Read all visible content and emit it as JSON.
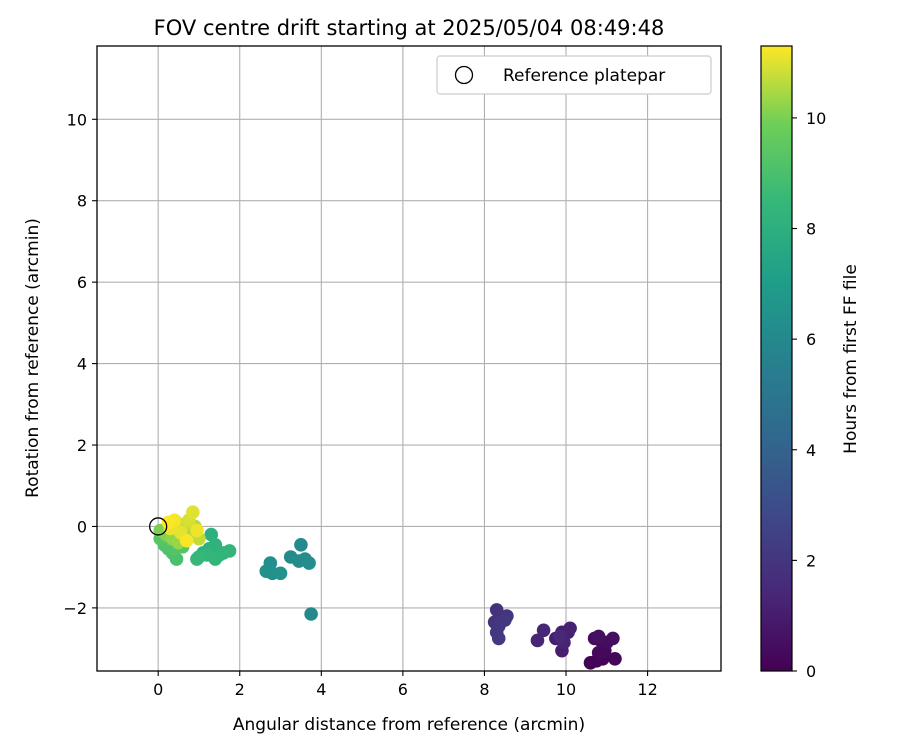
{
  "chart_data": {
    "type": "scatter",
    "title": "FOV centre drift starting at 2025/05/04 08:49:48",
    "xlabel": "Angular distance from reference (arcmin)",
    "ylabel": "Rotation from reference (arcmin)",
    "xlim": [
      -1.5,
      13.8
    ],
    "ylim": [
      -3.55,
      11.8
    ],
    "xticks": [
      0,
      2,
      4,
      6,
      8,
      10,
      12
    ],
    "yticks": [
      -2,
      0,
      2,
      4,
      6,
      8,
      10
    ],
    "grid": true,
    "legend": {
      "placement": "top-right",
      "entries": [
        "Reference platepar"
      ]
    },
    "reference_point": {
      "x": 0.0,
      "y": 0.0
    },
    "colorbar": {
      "label": "Hours from first FF file",
      "colormap": "viridis",
      "range": [
        0,
        11.3
      ],
      "ticks": [
        0,
        2,
        4,
        6,
        8,
        10
      ]
    },
    "points": [
      {
        "x": 10.6,
        "y": -3.35,
        "c": 0.05
      },
      {
        "x": 10.75,
        "y": -3.3,
        "c": 0.1
      },
      {
        "x": 10.9,
        "y": -3.25,
        "c": 0.15
      },
      {
        "x": 11.2,
        "y": -3.25,
        "c": 0.2
      },
      {
        "x": 10.8,
        "y": -3.1,
        "c": 0.25
      },
      {
        "x": 10.95,
        "y": -3.05,
        "c": 0.3
      },
      {
        "x": 10.7,
        "y": -2.75,
        "c": 0.35
      },
      {
        "x": 10.85,
        "y": -2.8,
        "c": 0.4
      },
      {
        "x": 11.0,
        "y": -2.85,
        "c": 0.45
      },
      {
        "x": 11.15,
        "y": -2.75,
        "c": 0.5
      },
      {
        "x": 10.8,
        "y": -2.7,
        "c": 0.55
      },
      {
        "x": 9.9,
        "y": -3.05,
        "c": 1.0
      },
      {
        "x": 9.75,
        "y": -2.75,
        "c": 1.05
      },
      {
        "x": 9.9,
        "y": -2.6,
        "c": 1.1
      },
      {
        "x": 10.05,
        "y": -2.6,
        "c": 1.15
      },
      {
        "x": 10.1,
        "y": -2.5,
        "c": 1.2
      },
      {
        "x": 9.95,
        "y": -2.85,
        "c": 1.25
      },
      {
        "x": 9.3,
        "y": -2.8,
        "c": 1.3
      },
      {
        "x": 9.45,
        "y": -2.55,
        "c": 1.35
      },
      {
        "x": 9.85,
        "y": -2.7,
        "c": 1.4
      },
      {
        "x": 8.3,
        "y": -2.05,
        "c": 1.8
      },
      {
        "x": 8.25,
        "y": -2.35,
        "c": 1.85
      },
      {
        "x": 8.35,
        "y": -2.45,
        "c": 1.9
      },
      {
        "x": 8.55,
        "y": -2.2,
        "c": 1.95
      },
      {
        "x": 8.4,
        "y": -2.35,
        "c": 2.0
      },
      {
        "x": 8.5,
        "y": -2.3,
        "c": 2.05
      },
      {
        "x": 8.3,
        "y": -2.6,
        "c": 2.1
      },
      {
        "x": 8.35,
        "y": -2.75,
        "c": 2.15
      },
      {
        "x": 3.75,
        "y": -2.15,
        "c": 6.0
      },
      {
        "x": 3.5,
        "y": -0.45,
        "c": 6.05
      },
      {
        "x": 3.25,
        "y": -0.75,
        "c": 6.1
      },
      {
        "x": 3.45,
        "y": -0.85,
        "c": 6.15
      },
      {
        "x": 3.6,
        "y": -0.8,
        "c": 6.2
      },
      {
        "x": 3.7,
        "y": -0.9,
        "c": 6.25
      },
      {
        "x": 2.75,
        "y": -0.9,
        "c": 6.3
      },
      {
        "x": 2.65,
        "y": -1.1,
        "c": 6.35
      },
      {
        "x": 2.8,
        "y": -1.15,
        "c": 6.4
      },
      {
        "x": 3.0,
        "y": -1.15,
        "c": 6.45
      },
      {
        "x": 1.3,
        "y": -0.2,
        "c": 8.0
      },
      {
        "x": 1.25,
        "y": -0.55,
        "c": 8.05
      },
      {
        "x": 1.1,
        "y": -0.65,
        "c": 8.1
      },
      {
        "x": 1.5,
        "y": -0.7,
        "c": 8.15
      },
      {
        "x": 1.4,
        "y": -0.45,
        "c": 8.2
      },
      {
        "x": 1.6,
        "y": -0.65,
        "c": 8.25
      },
      {
        "x": 1.75,
        "y": -0.6,
        "c": 8.3
      },
      {
        "x": 1.4,
        "y": -0.8,
        "c": 8.35
      },
      {
        "x": 1.2,
        "y": -0.7,
        "c": 8.4
      },
      {
        "x": 1.0,
        "y": -0.75,
        "c": 8.45
      },
      {
        "x": 0.95,
        "y": -0.8,
        "c": 8.5
      },
      {
        "x": 0.45,
        "y": -0.8,
        "c": 9.0
      },
      {
        "x": 0.35,
        "y": -0.65,
        "c": 9.05
      },
      {
        "x": 0.25,
        "y": -0.55,
        "c": 9.1
      },
      {
        "x": 0.15,
        "y": -0.45,
        "c": 9.15
      },
      {
        "x": 0.4,
        "y": -0.55,
        "c": 9.2
      },
      {
        "x": 0.6,
        "y": -0.5,
        "c": 9.25
      },
      {
        "x": 0.3,
        "y": -0.35,
        "c": 9.3
      },
      {
        "x": 0.05,
        "y": -0.3,
        "c": 9.35
      },
      {
        "x": 0.05,
        "y": -0.1,
        "c": 10.0
      },
      {
        "x": 0.2,
        "y": -0.2,
        "c": 10.1
      },
      {
        "x": 0.35,
        "y": -0.3,
        "c": 10.2
      },
      {
        "x": 0.5,
        "y": -0.4,
        "c": 10.3
      },
      {
        "x": 0.65,
        "y": -0.3,
        "c": 10.4
      },
      {
        "x": 0.8,
        "y": -0.2,
        "c": 10.5
      },
      {
        "x": 0.9,
        "y": 0.0,
        "c": 10.6
      },
      {
        "x": 1.0,
        "y": -0.3,
        "c": 10.7
      },
      {
        "x": 0.45,
        "y": 0.1,
        "c": 10.75
      },
      {
        "x": 0.6,
        "y": 0.0,
        "c": 10.8
      },
      {
        "x": 0.75,
        "y": 0.15,
        "c": 10.9
      },
      {
        "x": 0.85,
        "y": 0.35,
        "c": 11.0
      },
      {
        "x": 0.55,
        "y": -0.15,
        "c": 11.05
      },
      {
        "x": 0.3,
        "y": -0.05,
        "c": 11.1
      },
      {
        "x": 0.95,
        "y": -0.1,
        "c": 11.15
      },
      {
        "x": 0.4,
        "y": 0.15,
        "c": 11.2
      },
      {
        "x": 0.7,
        "y": -0.35,
        "c": 11.25
      },
      {
        "x": 0.25,
        "y": 0.1,
        "c": 11.3
      }
    ]
  }
}
